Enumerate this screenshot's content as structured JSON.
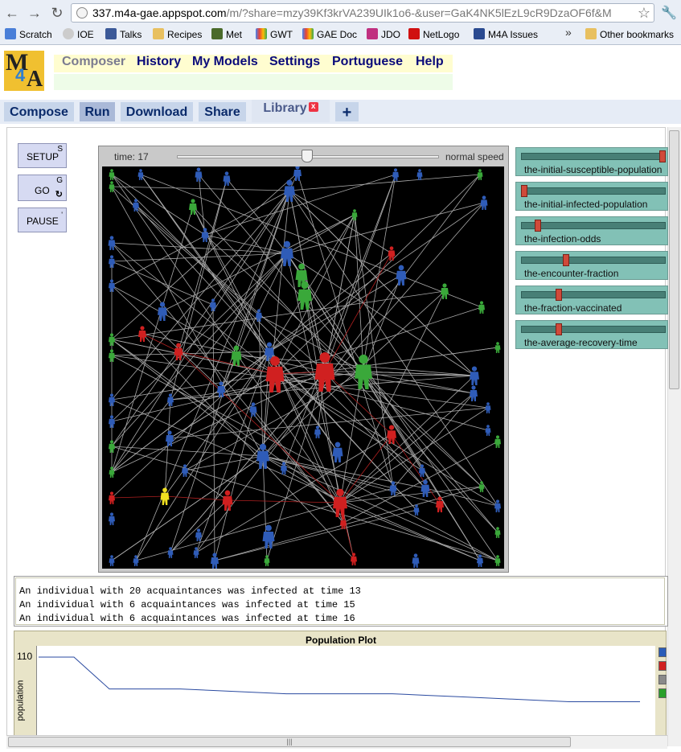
{
  "browser": {
    "url_host": "337.m4a-gae.appspot.com",
    "url_path": "/m/?share=mzy39Kf3krVA239UIk1o6-&user=GaK4NK5lEzL9cR9DzaOF6f&M",
    "bookmarks": [
      "Scratch",
      "IOE",
      "Talks",
      "Recipes",
      "Met",
      "GWT",
      "GAE Doc",
      "JDO",
      "NetLogo",
      "M4A Issues"
    ],
    "other_bookmarks": "Other bookmarks",
    "more": "»"
  },
  "site": {
    "logo_m": "M",
    "logo_4": "4",
    "logo_a": "A",
    "menu": [
      "Composer",
      "History",
      "My Models",
      "Settings",
      "Portuguese",
      "Help"
    ]
  },
  "tabs": [
    "Compose",
    "Run",
    "Download",
    "Share",
    "Library",
    "+"
  ],
  "tab_close": "x",
  "controls": {
    "setup": {
      "label": "SETUP",
      "key": "S"
    },
    "go": {
      "label": "GO",
      "key": "G",
      "forever_icon": "↻"
    },
    "pause": {
      "label": "PAUSE",
      "key": "'"
    }
  },
  "world": {
    "time_label": "time: 17",
    "speed_label": "normal speed",
    "speed": 0.5
  },
  "sliders": [
    {
      "name": "the-initial-susceptible-population",
      "level": 1.0
    },
    {
      "name": "the-initial-infected-population",
      "level": 0.0
    },
    {
      "name": "the-infection-odds",
      "level": 0.1
    },
    {
      "name": "the-encounter-fraction",
      "level": 0.3
    },
    {
      "name": "the-fraction-vaccinated",
      "level": 0.25
    },
    {
      "name": "the-average-recovery-time",
      "level": 0.25
    }
  ],
  "output_lines": [
    "An individual with 20 acquaintances was infected at time 13",
    "An individual with 6 acquaintances was infected at time 15",
    "An individual with 6 acquaintances was infected at time 16"
  ],
  "plot": {
    "title": "Population Plot",
    "ylabel": "population",
    "ymax_label": "110",
    "legend_colors": [
      "#2a5cb8",
      "#d02020",
      "#8a8a8a",
      "#2aa02a"
    ]
  },
  "colors": {
    "susceptible": "#2f5cb8",
    "infected": "#d02020",
    "recovered": "#3aa83a",
    "highlight": "#f0e020",
    "link": "#aaaaaa",
    "infected_link": "#b02020"
  },
  "chart_data": {
    "type": "line",
    "title": "Population Plot",
    "ylabel": "population",
    "xlabel": "",
    "ylim": [
      0,
      110
    ],
    "x": [
      0,
      1,
      2,
      3,
      4,
      5,
      6,
      7,
      8,
      9,
      10,
      11,
      12,
      13,
      14,
      15,
      16,
      17
    ],
    "series": [
      {
        "values": [
          110,
          110,
          90,
          90,
          90,
          89,
          88,
          87,
          87,
          87,
          87,
          86,
          85,
          84,
          83,
          82,
          82,
          82
        ]
      }
    ]
  }
}
